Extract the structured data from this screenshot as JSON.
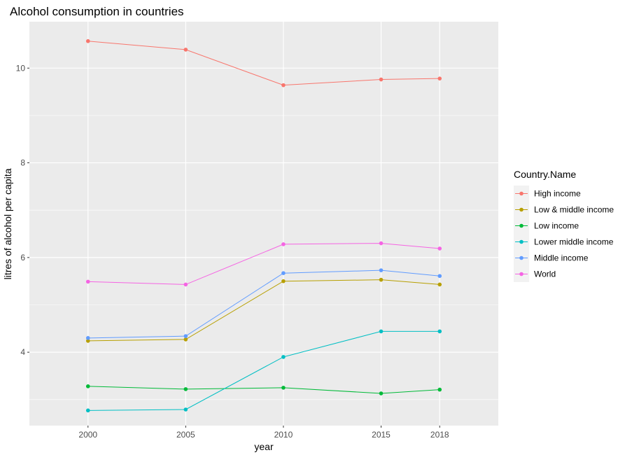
{
  "chart_data": {
    "type": "line",
    "title": "Alcohol consumption in countries",
    "xlabel": "year",
    "ylabel": "litres of alcohol per capita",
    "x": [
      2000,
      2005,
      2010,
      2015,
      2018
    ],
    "x_ticks": [
      "2000",
      "2005",
      "2010",
      "2015",
      "2018"
    ],
    "y_ticks": [
      "4",
      "6",
      "8",
      "10"
    ],
    "xlim": [
      1997,
      2021
    ],
    "ylim": [
      2.45,
      10.98
    ],
    "grid": true,
    "legend_title": "Country.Name",
    "legend_position": "right",
    "series": [
      {
        "name": "High income",
        "color": "#F8766D",
        "values": [
          10.57,
          10.39,
          9.64,
          9.76,
          9.78
        ]
      },
      {
        "name": "Low & middle income",
        "color": "#B79F00",
        "values": [
          4.24,
          4.27,
          5.5,
          5.53,
          5.43
        ]
      },
      {
        "name": "Low income",
        "color": "#00BA38",
        "values": [
          3.28,
          3.22,
          3.25,
          3.13,
          3.21
        ]
      },
      {
        "name": "Lower middle income",
        "color": "#00BFC4",
        "values": [
          2.77,
          2.79,
          3.9,
          4.44,
          4.44
        ]
      },
      {
        "name": "Middle income",
        "color": "#619CFF",
        "values": [
          4.3,
          4.34,
          5.67,
          5.73,
          5.61
        ]
      },
      {
        "name": "World",
        "color": "#F564E3",
        "values": [
          5.49,
          5.43,
          6.28,
          6.3,
          6.19
        ]
      }
    ]
  }
}
